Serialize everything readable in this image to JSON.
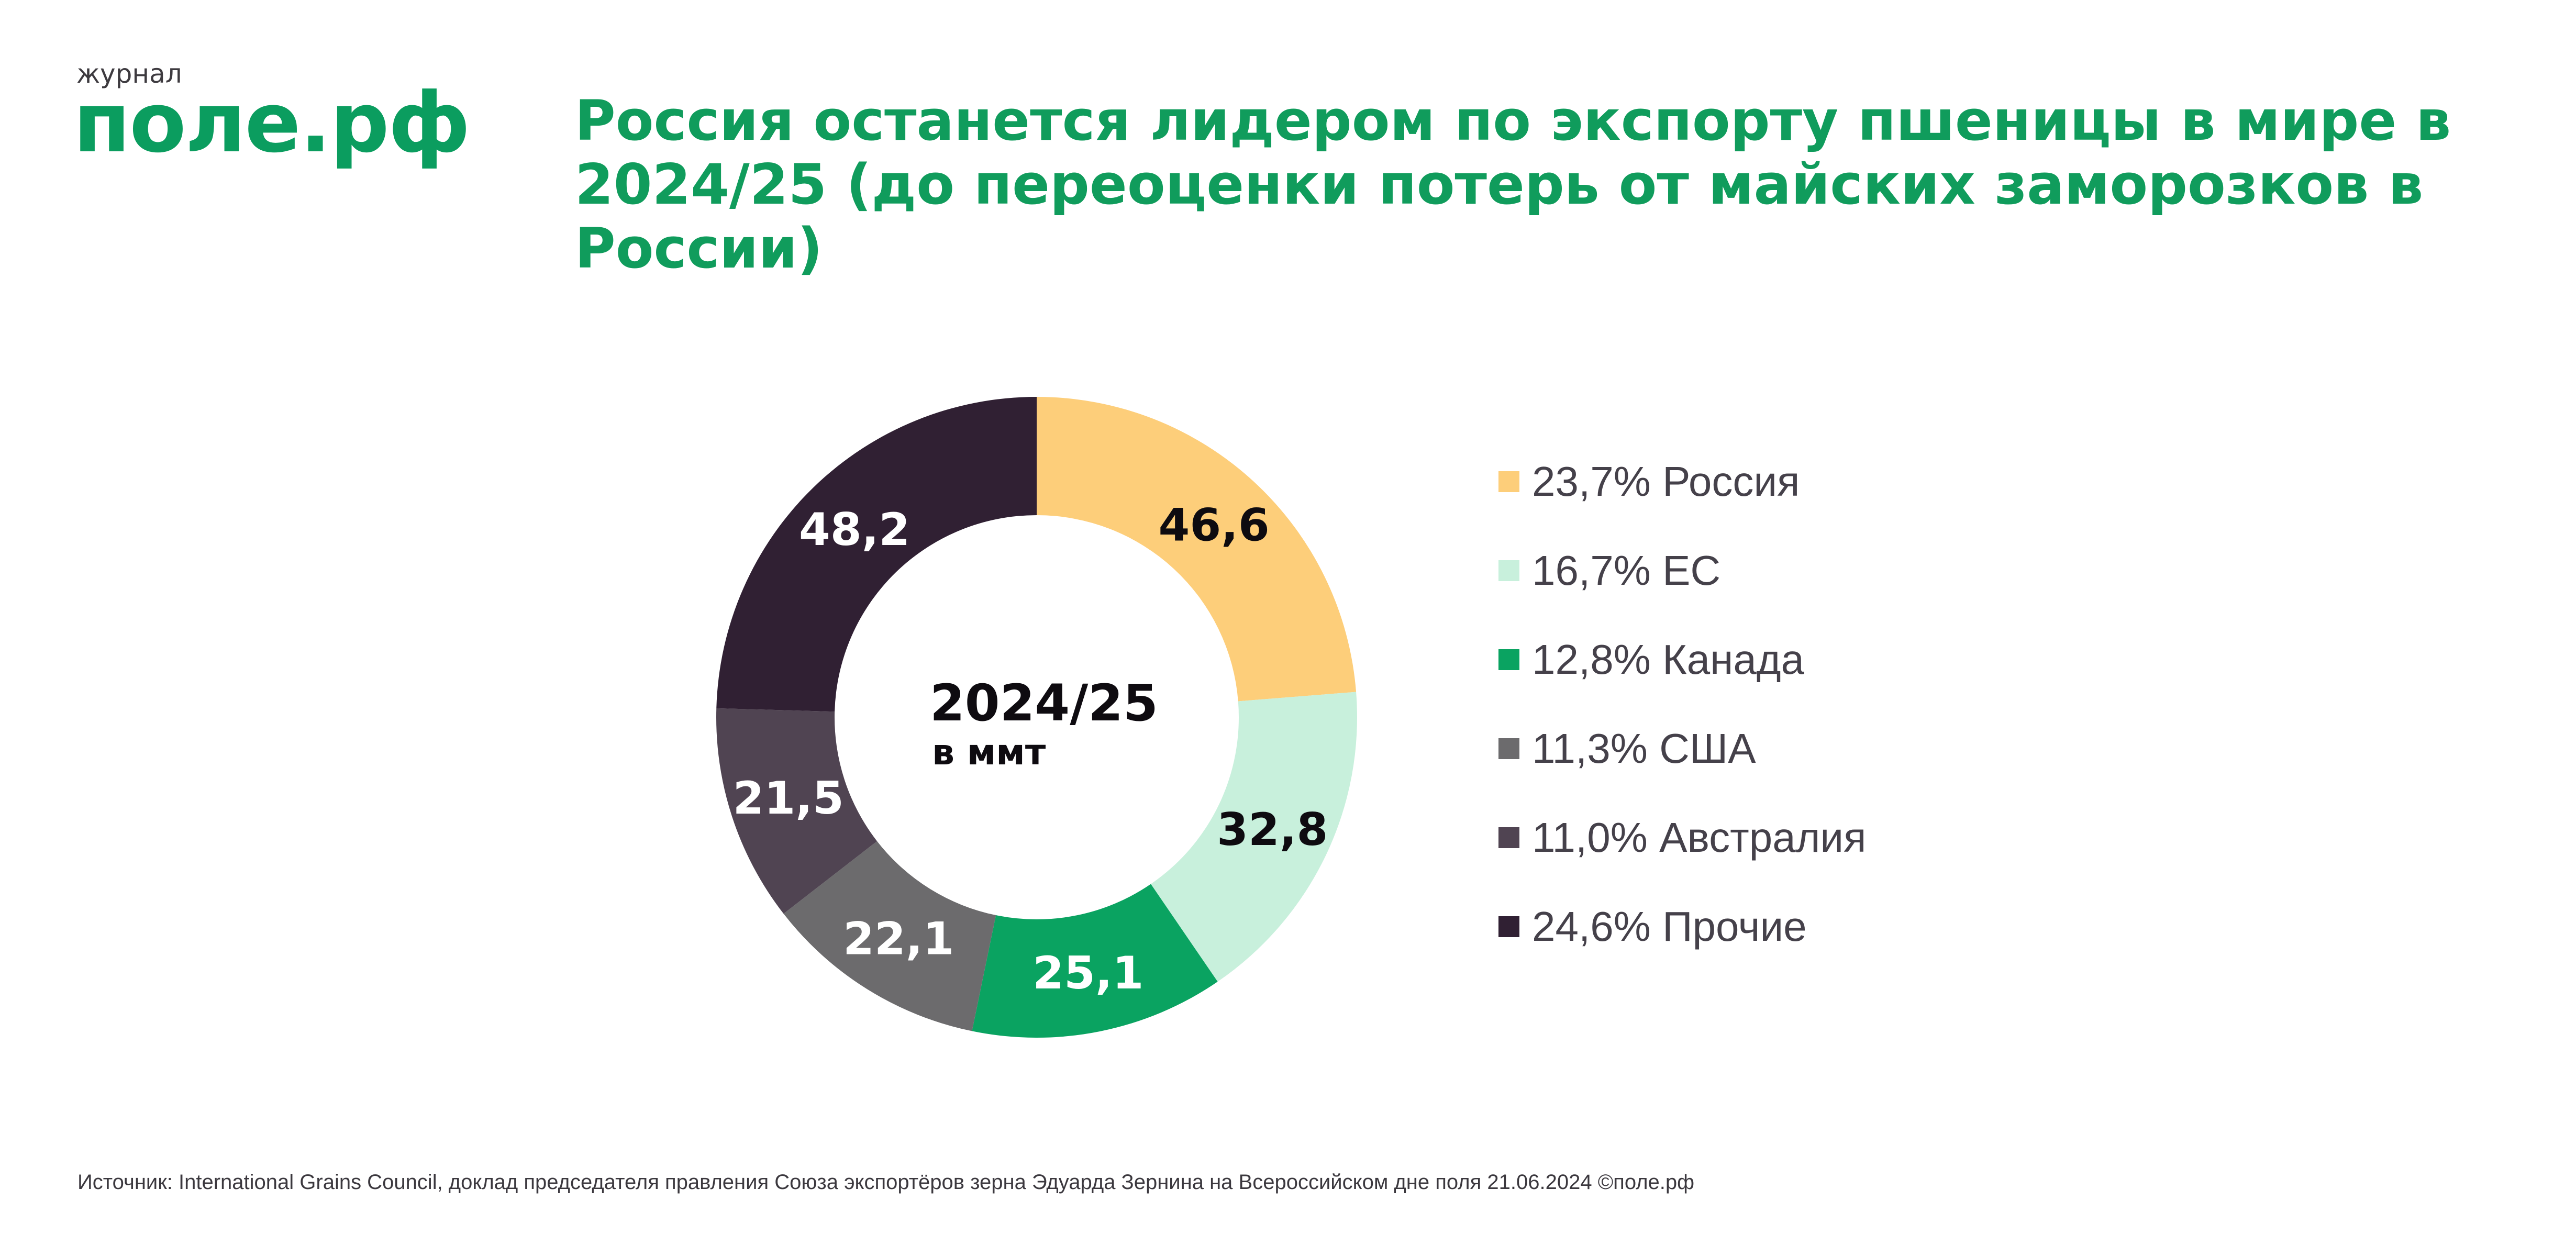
{
  "header": {
    "brand_subtitle": "журнал",
    "brand_logo": "поле.рф",
    "title": "Россия останется лидером по экспорту пшеницы в мире в 2024/25 (до переоценки потерь от майских заморозков в России)"
  },
  "center": {
    "year": "2024/25",
    "unit": "в ммт"
  },
  "chart_data": {
    "type": "pie",
    "variant": "donut",
    "title": "Россия останется лидером по экспорту пшеницы в мире в 2024/25 (до переоценки потерь от майских заморозков в России)",
    "center_text": [
      "2024/25",
      "в ммт"
    ],
    "unit": "ммт",
    "legend_position": "right",
    "slices": [
      {
        "name": "Россия",
        "value": 46.6,
        "label": "46,6",
        "percent_label": "23,7%",
        "color": "#fdce7a",
        "label_color": "#0e0b10"
      },
      {
        "name": "ЕС",
        "value": 32.8,
        "label": "32,8",
        "percent_label": "16,7%",
        "color": "#c8f0dc",
        "label_color": "#0e0b10"
      },
      {
        "name": "Канада",
        "value": 25.1,
        "label": "25,1",
        "percent_label": "12,8%",
        "color": "#0aa361",
        "label_color": "#ffffff"
      },
      {
        "name": "США",
        "value": 22.1,
        "label": "22,1",
        "percent_label": "11,3%",
        "color": "#6c6b6d",
        "label_color": "#ffffff"
      },
      {
        "name": "Австралия",
        "value": 21.5,
        "label": "21,5",
        "percent_label": "11,0%",
        "color": "#504452",
        "label_color": "#ffffff"
      },
      {
        "name": "Прочие",
        "value": 48.2,
        "label": "48,2",
        "percent_label": "24,6%",
        "color": "#302033",
        "label_color": "#ffffff"
      }
    ]
  },
  "legend": [
    {
      "text": "23,7% Россия",
      "color": "#fdce7a"
    },
    {
      "text": "16,7% ЕС",
      "color": "#c8f0dc"
    },
    {
      "text": "12,8% Канада",
      "color": "#0aa361"
    },
    {
      "text": "11,3% США",
      "color": "#6c6b6d"
    },
    {
      "text": "11,0% Австралия",
      "color": "#504452"
    },
    {
      "text": "24,6% Прочие",
      "color": "#302033"
    }
  ],
  "footer": {
    "source": "Источник:  International Grains Council, доклад председателя правления Союза экспортёров зерна Эдуарда Зернина на Всероссийском дне поля 21.06.2024 ©поле.рф"
  }
}
